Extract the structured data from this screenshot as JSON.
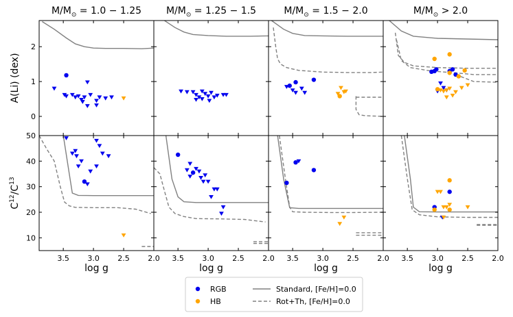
{
  "figure": {
    "x_axis_label": "log g",
    "row_labels": [
      "A(Li) (dex)",
      "C¹²/C¹³"
    ],
    "xlim": [
      3.9,
      2.0
    ],
    "xticks": [
      3.5,
      3.0,
      2.5,
      2.0
    ],
    "xtick_labels": [
      "3.5",
      "3.0",
      "2.5",
      "2.0"
    ],
    "rows": [
      {
        "key": "ali",
        "ylim": [
          -0.55,
          2.75
        ],
        "yticks": [
          0,
          1,
          2
        ],
        "ytick_labels": [
          "0",
          "1",
          "2"
        ]
      },
      {
        "key": "cc",
        "ylim": [
          5,
          50
        ],
        "yticks": [
          10,
          20,
          30,
          40,
          50
        ],
        "ytick_labels": [
          "10",
          "20",
          "30",
          "40",
          "50"
        ]
      }
    ],
    "colors": {
      "rgb": "#0000ee",
      "hb": "#ffa500",
      "standard": "#808080",
      "rot": "#808080"
    },
    "legend": {
      "position": "bottom-center",
      "items": [
        {
          "label": "RGB",
          "kind": "dot",
          "color": "#0000ee"
        },
        {
          "label": "HB",
          "kind": "dot",
          "color": "#ffa500"
        },
        {
          "label": "Standard, [Fe/H]=0.0",
          "kind": "solid"
        },
        {
          "label": "Rot+Th, [Fe/H]=0.0",
          "kind": "dashed"
        }
      ]
    }
  },
  "chart_data": [
    {
      "type": "scatter",
      "title": "M/M☉ = 1.0 − 1.25",
      "ali": {
        "rgb_detect": [
          [
            3.45,
            1.18
          ]
        ],
        "rgb_upper": [
          [
            3.65,
            0.8
          ],
          [
            3.48,
            0.62
          ],
          [
            3.45,
            0.58
          ],
          [
            3.35,
            0.62
          ],
          [
            3.3,
            0.55
          ],
          [
            3.25,
            0.58
          ],
          [
            3.2,
            0.48
          ],
          [
            3.18,
            0.42
          ],
          [
            3.15,
            0.55
          ],
          [
            3.1,
            0.98
          ],
          [
            3.05,
            0.62
          ],
          [
            2.95,
            0.45
          ],
          [
            2.9,
            0.55
          ],
          [
            2.8,
            0.52
          ],
          [
            3.1,
            0.3
          ],
          [
            2.95,
            0.32
          ],
          [
            2.7,
            0.55
          ]
        ],
        "hb_detect": [],
        "hb_upper": [
          [
            2.5,
            0.52
          ]
        ],
        "standard": [
          [
            3.85,
            2.72
          ],
          [
            3.65,
            2.5
          ],
          [
            3.45,
            2.25
          ],
          [
            3.3,
            2.08
          ],
          [
            3.15,
            2.0
          ],
          [
            3.0,
            1.96
          ],
          [
            2.8,
            1.95
          ],
          [
            2.5,
            1.95
          ],
          [
            2.2,
            1.94
          ],
          [
            2.1,
            1.95
          ],
          [
            2.0,
            1.96
          ]
        ],
        "rot": []
      },
      "cc": {
        "rgb_detect": [
          [
            3.15,
            32
          ]
        ],
        "rgb_upper": [
          [
            3.45,
            49
          ],
          [
            3.35,
            43
          ],
          [
            3.3,
            44
          ],
          [
            3.28,
            42
          ],
          [
            3.25,
            38
          ],
          [
            3.2,
            40
          ],
          [
            3.1,
            31
          ],
          [
            3.05,
            36
          ],
          [
            2.95,
            48
          ],
          [
            2.9,
            46
          ],
          [
            2.85,
            43
          ],
          [
            2.95,
            38
          ],
          [
            2.75,
            42
          ]
        ],
        "hb_detect": [],
        "hb_upper": [
          [
            2.5,
            11
          ]
        ],
        "standard": [
          [
            3.5,
            50
          ],
          [
            3.4,
            35
          ],
          [
            3.35,
            27.5
          ],
          [
            3.25,
            26.6
          ],
          [
            3.0,
            26.5
          ],
          [
            2.5,
            26.5
          ],
          [
            2.0,
            26.5
          ]
        ],
        "rot": [
          [
            3.9,
            50
          ],
          [
            3.78,
            45
          ],
          [
            3.65,
            40
          ],
          [
            3.55,
            30
          ],
          [
            3.48,
            24
          ],
          [
            3.4,
            22.5
          ],
          [
            3.3,
            21.9
          ],
          [
            3.0,
            21.8
          ],
          [
            2.6,
            21.8
          ],
          [
            2.3,
            21.2
          ],
          [
            2.05,
            19.5
          ]
        ],
        "rot_tail": [
          [
            2.2,
            6.6
          ],
          [
            2.0,
            6.6
          ]
        ]
      }
    },
    {
      "type": "scatter",
      "title": "M/M☉ = 1.25 − 1.5",
      "ali": {
        "rgb_detect": [],
        "rgb_upper": [
          [
            3.45,
            0.72
          ],
          [
            3.35,
            0.7
          ],
          [
            3.25,
            0.7
          ],
          [
            3.2,
            0.62
          ],
          [
            3.15,
            0.55
          ],
          [
            3.1,
            0.72
          ],
          [
            3.05,
            0.65
          ],
          [
            3.0,
            0.58
          ],
          [
            2.95,
            0.68
          ],
          [
            2.9,
            0.55
          ],
          [
            2.85,
            0.6
          ],
          [
            2.75,
            0.62
          ],
          [
            2.7,
            0.62
          ],
          [
            3.1,
            0.5
          ],
          [
            2.98,
            0.45
          ],
          [
            3.2,
            0.48
          ]
        ],
        "hb_detect": [],
        "hb_upper": [],
        "standard": [
          [
            3.75,
            2.78
          ],
          [
            3.55,
            2.55
          ],
          [
            3.4,
            2.42
          ],
          [
            3.25,
            2.35
          ],
          [
            3.0,
            2.32
          ],
          [
            2.7,
            2.3
          ],
          [
            2.3,
            2.3
          ],
          [
            2.0,
            2.31
          ]
        ],
        "rot": []
      },
      "cc": {
        "rgb_detect": [
          [
            3.5,
            42.5
          ],
          [
            3.25,
            35.5
          ]
        ],
        "rgb_upper": [
          [
            3.35,
            36.5
          ],
          [
            3.3,
            39
          ],
          [
            3.2,
            37
          ],
          [
            3.15,
            36
          ],
          [
            3.12,
            33.5
          ],
          [
            3.08,
            32
          ],
          [
            3.0,
            32
          ],
          [
            2.9,
            29
          ],
          [
            2.85,
            29
          ],
          [
            2.95,
            26
          ],
          [
            2.75,
            22
          ],
          [
            2.78,
            19.5
          ],
          [
            3.05,
            34.5
          ],
          [
            3.3,
            34
          ]
        ],
        "hb_detect": [],
        "hb_upper": [],
        "standard": [
          [
            3.7,
            50
          ],
          [
            3.6,
            33
          ],
          [
            3.5,
            26
          ],
          [
            3.4,
            24.1
          ],
          [
            3.2,
            23.8
          ],
          [
            2.8,
            23.8
          ],
          [
            2.3,
            23.8
          ],
          [
            2.0,
            23.8
          ]
        ],
        "rot": [
          [
            3.9,
            37.5
          ],
          [
            3.8,
            35
          ],
          [
            3.72,
            28
          ],
          [
            3.65,
            22
          ],
          [
            3.55,
            19.5
          ],
          [
            3.4,
            18.3
          ],
          [
            3.2,
            17.5
          ],
          [
            2.8,
            17.4
          ],
          [
            2.4,
            17.2
          ],
          [
            2.05,
            16.2
          ]
        ],
        "rot_tail": [
          [
            2.25,
            8.5
          ],
          [
            2.0,
            8.5
          ]
        ],
        "rot_tail2": [
          [
            2.25,
            7.8
          ],
          [
            2.0,
            7.8
          ]
        ]
      }
    },
    {
      "type": "scatter",
      "title": "M/M☉ = 1.5 − 2.0",
      "ali": {
        "rgb_detect": [
          [
            3.45,
            0.98
          ],
          [
            3.15,
            1.05
          ],
          [
            3.55,
            0.88
          ]
        ],
        "rgb_upper": [
          [
            3.6,
            0.85
          ],
          [
            3.5,
            0.75
          ],
          [
            3.45,
            0.68
          ],
          [
            3.35,
            0.8
          ],
          [
            3.3,
            0.68
          ]
        ],
        "hb_detect": [
          [
            2.72,
            0.58
          ]
        ],
        "hb_upper": [
          [
            2.7,
            0.82
          ],
          [
            2.65,
            0.7
          ],
          [
            2.62,
            0.72
          ],
          [
            2.75,
            0.65
          ]
        ],
        "standard": [
          [
            3.85,
            2.75
          ],
          [
            3.65,
            2.5
          ],
          [
            3.5,
            2.38
          ],
          [
            3.3,
            2.32
          ],
          [
            3.0,
            2.31
          ],
          [
            2.6,
            2.3
          ],
          [
            2.2,
            2.3
          ],
          [
            2.0,
            2.3
          ]
        ],
        "rot": [
          [
            3.82,
            2.55
          ],
          [
            3.78,
            2.0
          ],
          [
            3.75,
            1.65
          ],
          [
            3.7,
            1.5
          ],
          [
            3.6,
            1.4
          ],
          [
            3.4,
            1.32
          ],
          [
            3.0,
            1.27
          ],
          [
            2.6,
            1.26
          ],
          [
            2.2,
            1.26
          ],
          [
            2.0,
            1.27
          ]
        ],
        "rot_tail": [
          [
            2.45,
            0.58
          ],
          [
            2.45,
            0.2
          ],
          [
            2.4,
            0.05
          ],
          [
            2.3,
            0.02
          ],
          [
            2.0,
            0.0
          ]
        ],
        "rot_tail2": [
          [
            2.45,
            0.55
          ],
          [
            2.0,
            0.55
          ]
        ]
      },
      "cc": {
        "rgb_detect": [
          [
            3.6,
            31.5
          ],
          [
            3.45,
            39.5
          ],
          [
            3.15,
            36.5
          ]
        ],
        "rgb_upper": [
          [
            3.4,
            40
          ]
        ],
        "hb_detect": [],
        "hb_upper": [
          [
            2.72,
            15.5
          ],
          [
            2.65,
            18
          ]
        ],
        "standard": [
          [
            3.75,
            50
          ],
          [
            3.65,
            33
          ],
          [
            3.55,
            21.8
          ],
          [
            3.4,
            21.5
          ],
          [
            3.0,
            21.5
          ],
          [
            2.5,
            21.5
          ],
          [
            2.0,
            21.5
          ]
        ],
        "rot": [
          [
            3.72,
            50
          ],
          [
            3.62,
            33
          ],
          [
            3.55,
            22
          ],
          [
            3.5,
            20.2
          ],
          [
            3.3,
            20.0
          ],
          [
            2.9,
            19.9
          ],
          [
            2.5,
            19.9
          ],
          [
            2.0,
            20.0
          ]
        ],
        "rot_tail": [
          [
            2.45,
            12
          ],
          [
            2.0,
            12
          ]
        ],
        "rot_tail2": [
          [
            2.45,
            11
          ],
          [
            2.0,
            11
          ]
        ]
      }
    },
    {
      "type": "scatter",
      "title": "M/M☉ > 2.0",
      "ali": {
        "rgb_detect": [
          [
            3.05,
            1.3
          ],
          [
            2.8,
            1.3
          ],
          [
            2.75,
            1.35
          ],
          [
            3.02,
            1.35
          ],
          [
            2.7,
            1.2
          ],
          [
            3.1,
            1.28
          ]
        ],
        "rgb_upper": [
          [
            3.0,
            0.72
          ],
          [
            2.95,
            0.95
          ],
          [
            2.85,
            0.75
          ],
          [
            2.9,
            0.82
          ]
        ],
        "hb_detect": [
          [
            3.05,
            1.65
          ],
          [
            2.8,
            1.78
          ],
          [
            2.55,
            1.32
          ],
          [
            2.8,
            1.25
          ],
          [
            2.65,
            1.15
          ],
          [
            3.0,
            0.78
          ]
        ],
        "hb_upper": [
          [
            2.95,
            0.75
          ],
          [
            2.9,
            0.72
          ],
          [
            2.85,
            0.75
          ],
          [
            2.8,
            0.8
          ],
          [
            2.75,
            0.6
          ],
          [
            2.7,
            0.7
          ],
          [
            2.6,
            0.82
          ],
          [
            2.5,
            0.9
          ],
          [
            2.85,
            0.55
          ]
        ],
        "standard": [
          [
            3.8,
            2.75
          ],
          [
            3.6,
            2.45
          ],
          [
            3.4,
            2.3
          ],
          [
            3.0,
            2.24
          ],
          [
            2.5,
            2.22
          ],
          [
            2.0,
            2.2
          ]
        ],
        "rot": [
          [
            3.7,
            2.4
          ],
          [
            3.65,
            1.75
          ],
          [
            3.55,
            1.55
          ],
          [
            3.4,
            1.45
          ],
          [
            3.0,
            1.4
          ],
          [
            2.5,
            1.38
          ],
          [
            2.0,
            1.38
          ]
        ],
        "rot_tail": [
          [
            3.68,
            2.2
          ],
          [
            3.6,
            1.6
          ],
          [
            3.45,
            1.4
          ],
          [
            3.1,
            1.3
          ],
          [
            2.7,
            1.25
          ],
          [
            2.4,
            1.2
          ],
          [
            2.0,
            1.2
          ]
        ],
        "rot_tail2": [
          [
            2.7,
            1.2
          ],
          [
            2.4,
            1.0
          ],
          [
            2.0,
            0.98
          ]
        ]
      },
      "cc": {
        "rgb_detect": [
          [
            3.05,
            22
          ],
          [
            2.8,
            28
          ]
        ],
        "rgb_upper": [
          [
            2.92,
            18
          ]
        ],
        "hb_detect": [
          [
            2.8,
            32.5
          ],
          [
            3.05,
            21
          ],
          [
            2.8,
            21
          ]
        ],
        "hb_upper": [
          [
            3.0,
            28
          ],
          [
            2.95,
            28
          ],
          [
            2.9,
            22
          ],
          [
            2.85,
            22
          ],
          [
            2.8,
            23
          ],
          [
            2.9,
            18
          ],
          [
            2.5,
            22
          ]
        ],
        "standard": [
          [
            3.55,
            50
          ],
          [
            3.45,
            33
          ],
          [
            3.4,
            22
          ],
          [
            3.3,
            20.2
          ],
          [
            3.0,
            20.1
          ],
          [
            2.5,
            20.1
          ],
          [
            2.0,
            20.1
          ]
        ],
        "rot": [
          [
            3.6,
            50
          ],
          [
            3.5,
            33
          ],
          [
            3.42,
            21
          ],
          [
            3.3,
            19
          ],
          [
            3.0,
            18.2
          ],
          [
            2.5,
            18.0
          ],
          [
            2.0,
            18.0
          ]
        ],
        "rot_tail": [
          [
            2.35,
            15.2
          ],
          [
            2.0,
            15.2
          ]
        ],
        "rot_tail2": [
          [
            2.35,
            14.9
          ],
          [
            2.0,
            14.9
          ]
        ]
      }
    }
  ]
}
